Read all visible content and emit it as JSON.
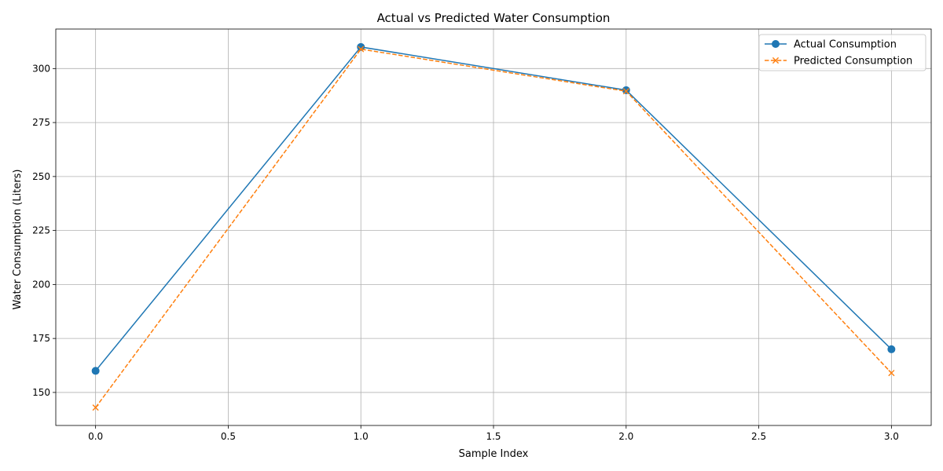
{
  "chart_data": {
    "type": "line",
    "title": "Actual vs Predicted Water Consumption",
    "xlabel": "Sample Index",
    "ylabel": "Water Consumption (Liters)",
    "x": [
      0,
      1,
      2,
      3
    ],
    "xlim": [
      -0.15,
      3.15
    ],
    "ylim": [
      134.7,
      318.3
    ],
    "xticks": [
      0.0,
      0.5,
      1.0,
      1.5,
      2.0,
      2.5,
      3.0
    ],
    "xtick_labels": [
      "0.0",
      "0.5",
      "1.0",
      "1.5",
      "2.0",
      "2.5",
      "3.0"
    ],
    "yticks": [
      150,
      175,
      200,
      225,
      250,
      275,
      300
    ],
    "ytick_labels": [
      "150",
      "175",
      "200",
      "225",
      "250",
      "275",
      "300"
    ],
    "grid": true,
    "legend_position": "top-right",
    "series": [
      {
        "name": "Actual Consumption",
        "values": [
          160,
          310,
          290,
          170
        ],
        "color": "#1f77b4",
        "marker": "circle",
        "line_style": "solid"
      },
      {
        "name": "Predicted Consumption",
        "values": [
          143,
          309,
          289.5,
          159
        ],
        "color": "#ff7f0e",
        "marker": "x",
        "line_style": "dashed"
      }
    ]
  }
}
